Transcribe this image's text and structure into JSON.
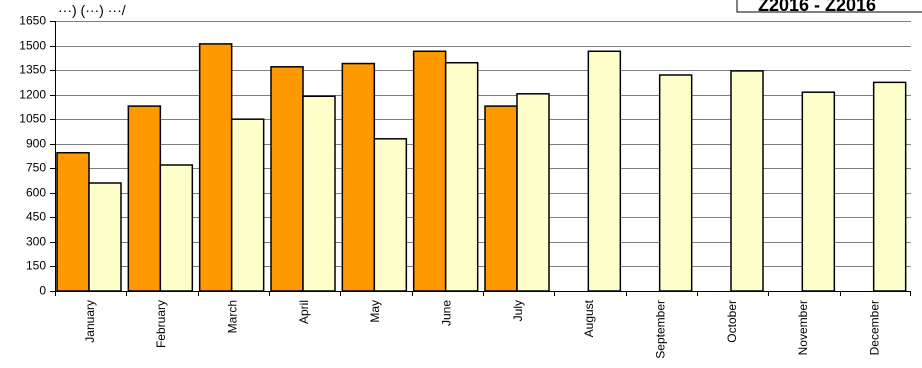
{
  "header": {
    "top_left_fragment": "···) (···) ···/",
    "legend_fragment": "Z2016 - Z2016"
  },
  "colors": {
    "series_a": "#FF9900",
    "series_b": "#FFFFCC",
    "outline": "#000000",
    "grid": "#808080",
    "background": "#FFFFFF"
  },
  "chart_data": {
    "type": "bar",
    "title": "",
    "xlabel": "",
    "ylabel": "",
    "ylim": [
      0,
      1650
    ],
    "yticks": [
      0,
      150,
      300,
      450,
      600,
      750,
      900,
      1050,
      1200,
      1350,
      1500,
      1650
    ],
    "grid": true,
    "categories": [
      "January",
      "February",
      "March",
      "April",
      "May",
      "June",
      "July",
      "August",
      "September",
      "October",
      "November",
      "December"
    ],
    "series": [
      {
        "values": [
          845,
          1130,
          1510,
          1370,
          1390,
          1465,
          1130,
          null,
          null,
          null,
          null,
          null
        ]
      },
      {
        "values": [
          660,
          770,
          1050,
          1190,
          930,
          1395,
          1205,
          1465,
          1320,
          1345,
          1215,
          1275
        ]
      }
    ]
  }
}
